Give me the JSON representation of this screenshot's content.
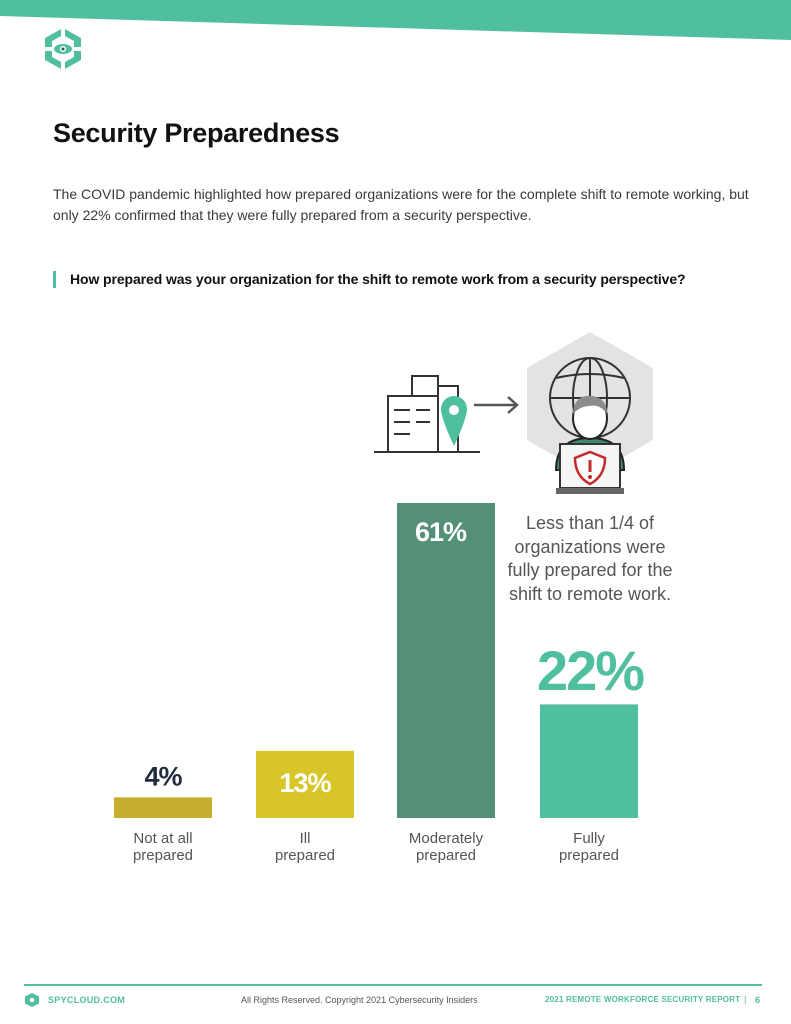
{
  "header": {
    "title": "Security Preparedness",
    "intro": "The COVID pandemic highlighted how prepared organizations were for the complete shift to remote working, but only 22% confirmed that they were fully prepared from a security perspective.",
    "question": "How prepared was your organization for the shift to remote work from a security perspective?"
  },
  "colors": {
    "accent": "#4fbf9f",
    "dark_teal": "#548f78",
    "mustard": "#c8ae2e",
    "yellow": "#d7c52a",
    "pct_dark": "#232b3e"
  },
  "icons": [
    "spycloud-logo-icon",
    "office-building-icon",
    "location-pin-icon",
    "arrow-right-icon",
    "globe-icon",
    "remote-worker-icon",
    "shield-warning-icon"
  ],
  "callout": {
    "text": "Less than 1/4 of organizations were fully prepared for the shift to remote work.",
    "value": "22%"
  },
  "chart_data": {
    "type": "bar",
    "categories": [
      "Not at all prepared",
      "Ill prepared",
      "Moderately prepared",
      "Fully prepared"
    ],
    "category_lines": [
      [
        "Not at all",
        "prepared"
      ],
      [
        "Ill",
        "prepared"
      ],
      [
        "Moderately",
        "prepared"
      ],
      [
        "Fully",
        "prepared"
      ]
    ],
    "values": [
      4,
      13,
      61,
      22
    ],
    "data_labels": [
      "4%",
      "13%",
      "61%",
      ""
    ],
    "colors": [
      "#c8ae2e",
      "#d7c52a",
      "#548f78",
      "#4fbf9f"
    ],
    "ylim": [
      0,
      61
    ],
    "grid": false
  },
  "footer": {
    "brand": "SPYCLOUD.COM",
    "copyright": "All Rights Reserved. Copyright 2021 Cybersecurity Insiders",
    "report": "2021 REMOTE WORKFORCE SECURITY REPORT",
    "separator": "|",
    "page": "6"
  }
}
